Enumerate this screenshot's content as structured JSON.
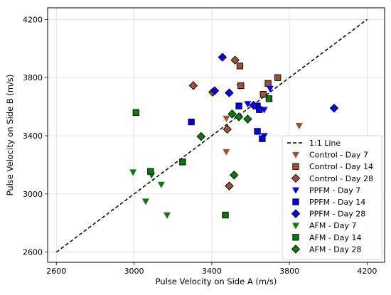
{
  "chart_data": {
    "type": "scatter",
    "xlabel": "Pulse Velocity on Side A (m/s)",
    "ylabel": "Pulse Velocity on Side B (m/s)",
    "xlim": [
      2555,
      4290
    ],
    "ylim": [
      2530,
      4280
    ],
    "xticks": [
      2600,
      3000,
      3400,
      3800,
      4200
    ],
    "yticks": [
      2600,
      3000,
      3400,
      3800,
      4200
    ],
    "grid": true,
    "legend_position": "lower-right",
    "reference_line": {
      "name": "1:1 Line",
      "x": [
        2600,
        4200
      ],
      "y": [
        2600,
        4200
      ],
      "style": "dashed",
      "color": "#000000"
    },
    "series": [
      {
        "name": "Control - Day 7",
        "marker": "triangle-down",
        "color": "#a0522d",
        "points": [
          [
            3475,
            3520
          ],
          [
            3545,
            3740
          ],
          [
            3850,
            3470
          ],
          [
            3475,
            3290
          ]
        ]
      },
      {
        "name": "Control - Day 14",
        "marker": "square",
        "color": "#a0522d",
        "points": [
          [
            3545,
            3880
          ],
          [
            3550,
            3745
          ],
          [
            3665,
            3685
          ],
          [
            3690,
            3760
          ],
          [
            3740,
            3800
          ]
        ]
      },
      {
        "name": "Control - Day 28",
        "marker": "diamond",
        "color": "#a0522d",
        "points": [
          [
            3520,
            3920
          ],
          [
            3305,
            3745
          ],
          [
            3405,
            3700
          ],
          [
            3480,
            3445
          ],
          [
            3490,
            3055
          ]
        ]
      },
      {
        "name": "PPFM - Day 7",
        "marker": "triangle-down",
        "color": "#0000ff",
        "points": [
          [
            3585,
            3620
          ],
          [
            3670,
            3580
          ],
          [
            3700,
            3725
          ],
          [
            3670,
            3400
          ]
        ]
      },
      {
        "name": "PPFM - Day 14",
        "marker": "square",
        "color": "#0000ff",
        "points": [
          [
            3295,
            3495
          ],
          [
            3540,
            3605
          ],
          [
            3635,
            3605
          ],
          [
            3645,
            3580
          ],
          [
            3635,
            3430
          ],
          [
            3660,
            3380
          ]
        ]
      },
      {
        "name": "PPFM - Day 28",
        "marker": "diamond",
        "color": "#0000ff",
        "points": [
          [
            3455,
            3940
          ],
          [
            3415,
            3710
          ],
          [
            3490,
            3695
          ],
          [
            3615,
            3610
          ],
          [
            4030,
            3590
          ]
        ]
      },
      {
        "name": "AFM - Day 7",
        "marker": "triangle-down",
        "color": "#008000",
        "points": [
          [
            2995,
            3150
          ],
          [
            3090,
            3130
          ],
          [
            3140,
            3065
          ],
          [
            3060,
            2950
          ],
          [
            3170,
            2855
          ]
        ]
      },
      {
        "name": "AFM - Day 14",
        "marker": "square",
        "color": "#008000",
        "points": [
          [
            3010,
            3560
          ],
          [
            3085,
            3155
          ],
          [
            3250,
            3220
          ],
          [
            3470,
            2855
          ],
          [
            3695,
            3655
          ]
        ]
      },
      {
        "name": "AFM - Day 28",
        "marker": "diamond",
        "color": "#008000",
        "points": [
          [
            3345,
            3395
          ],
          [
            3505,
            3550
          ],
          [
            3540,
            3530
          ],
          [
            3585,
            3515
          ],
          [
            3515,
            3130
          ]
        ]
      }
    ]
  }
}
